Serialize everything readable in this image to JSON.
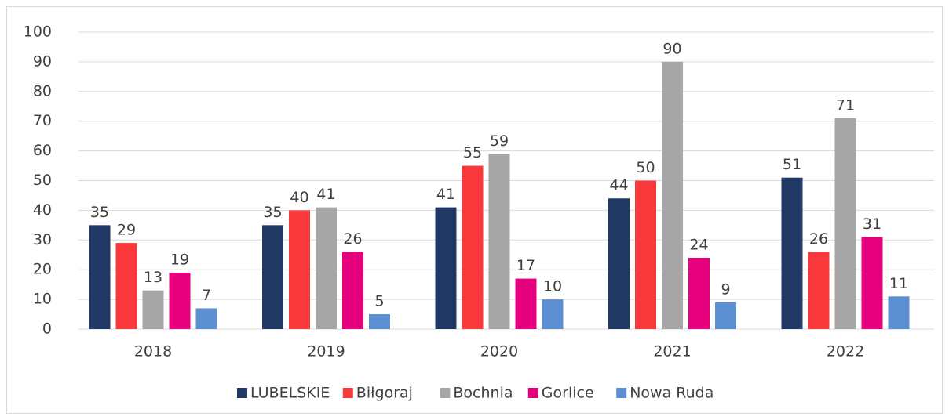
{
  "chart_data": {
    "type": "bar",
    "categories": [
      "2018",
      "2019",
      "2020",
      "2021",
      "2022"
    ],
    "series": [
      {
        "name": "LUBELSKIE",
        "color": "#1f3864",
        "values": [
          35,
          35,
          41,
          44,
          51
        ]
      },
      {
        "name": "Biłgoraj",
        "color": "#f8383b",
        "values": [
          29,
          40,
          55,
          50,
          26
        ]
      },
      {
        "name": "Bochnia",
        "color": "#a6a6a6",
        "values": [
          13,
          41,
          59,
          90,
          71
        ]
      },
      {
        "name": "Gorlice",
        "color": "#e6007e",
        "values": [
          19,
          26,
          17,
          24,
          31
        ]
      },
      {
        "name": "Nowa Ruda",
        "color": "#5b8fd1",
        "values": [
          7,
          5,
          10,
          9,
          11
        ]
      }
    ],
    "ylim": [
      0,
      100
    ],
    "yticks": [
      0,
      10,
      20,
      30,
      40,
      50,
      60,
      70,
      80,
      90,
      100
    ],
    "grid": true,
    "legend": "bottom"
  }
}
